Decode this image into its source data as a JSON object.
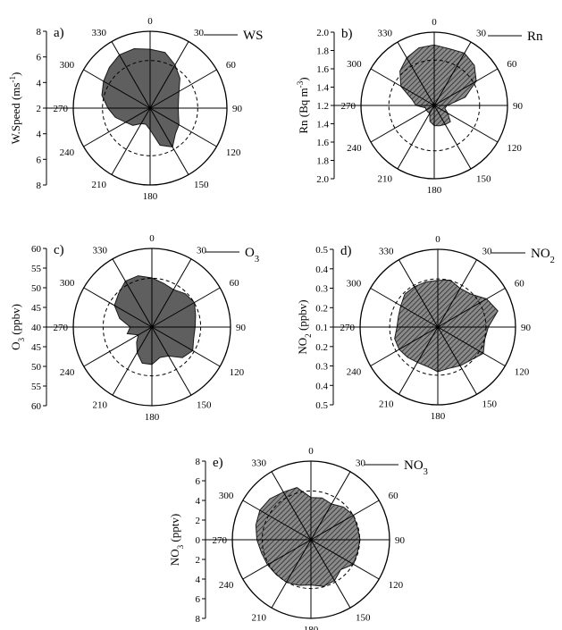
{
  "chart_data": [
    {
      "type": "polar-area",
      "panel": "a)",
      "ylabel": "W.Speed (ms⁻¹)",
      "legend": "WS",
      "rlim": [
        2,
        8
      ],
      "radial_ticks": [
        "2",
        "4",
        "6",
        "8"
      ],
      "angle_ticks": [
        "0",
        "30",
        "60",
        "90",
        "120",
        "150",
        "180",
        "210",
        "240",
        "270",
        "300",
        "330"
      ],
      "fill": "solid",
      "series": [
        {
          "name": "WS",
          "angles": [
            0,
            15,
            30,
            45,
            60,
            75,
            90,
            105,
            120,
            135,
            150,
            165,
            180,
            195,
            210,
            225,
            240,
            255,
            270,
            285,
            300,
            315,
            330,
            345
          ],
          "values": [
            6.6,
            6.5,
            5.9,
            5.3,
            4.6,
            4.3,
            4.2,
            4.3,
            4.6,
            4.8,
            5.5,
            5.0,
            3.7,
            3.3,
            3.4,
            3.9,
            4.2,
            4.8,
            5.3,
            5.9,
            6.2,
            6.5,
            6.8,
            6.8
          ]
        }
      ]
    },
    {
      "type": "polar-area",
      "panel": "b)",
      "ylabel": "Rn (Bq m⁻³)",
      "legend": "Rn",
      "rlim": [
        1.2,
        2.0
      ],
      "radial_ticks": [
        "1.2",
        "1.4",
        "1.6",
        "1.8",
        "2.0"
      ],
      "angle_ticks": [
        "0",
        "30",
        "60",
        "90",
        "120",
        "150",
        "180",
        "210",
        "240",
        "270",
        "300",
        "330"
      ],
      "fill": "hatched",
      "series": [
        {
          "name": "Rn",
          "angles": [
            0,
            15,
            30,
            45,
            60,
            75,
            90,
            105,
            120,
            135,
            150,
            165,
            180,
            195,
            210,
            225,
            240,
            255,
            270,
            285,
            300,
            315,
            330,
            345
          ],
          "values": [
            1.86,
            1.84,
            1.86,
            1.82,
            1.73,
            1.55,
            1.34,
            1.32,
            1.37,
            1.45,
            1.44,
            1.43,
            1.42,
            1.38,
            1.3,
            1.3,
            1.3,
            1.3,
            1.4,
            1.45,
            1.62,
            1.73,
            1.8,
            1.85
          ]
        }
      ]
    },
    {
      "type": "polar-area",
      "panel": "c)",
      "ylabel": "O₃ (ppbv)",
      "legend": "O₃",
      "rlim": [
        40,
        60
      ],
      "radial_ticks": [
        "40",
        "45",
        "50",
        "55",
        "60"
      ],
      "angle_ticks": [
        "0",
        "30",
        "60",
        "90",
        "120",
        "150",
        "180",
        "210",
        "240",
        "270",
        "300",
        "330"
      ],
      "fill": "solid",
      "series": [
        {
          "name": "O₃",
          "angles": [
            0,
            15,
            30,
            45,
            60,
            75,
            90,
            105,
            120,
            135,
            150,
            165,
            180,
            195,
            210,
            225,
            240,
            255,
            270,
            285,
            300,
            315,
            330,
            345
          ],
          "values": [
            52.5,
            51.5,
            51.0,
            52.0,
            52.5,
            51.5,
            51.0,
            51.0,
            52.0,
            51.0,
            48.5,
            48.0,
            49.5,
            49.5,
            47.5,
            45.5,
            44.0,
            46.5,
            45.5,
            48.5,
            51.0,
            52.0,
            53.5,
            53.5
          ]
        }
      ]
    },
    {
      "type": "polar-area",
      "panel": "d)",
      "ylabel": "NO₂ (ppbv)",
      "legend": "NO₂",
      "rlim": [
        0.1,
        0.5
      ],
      "radial_ticks": [
        "0.1",
        "0.2",
        "0.3",
        "0.4",
        "0.5"
      ],
      "angle_ticks": [
        "0",
        "30",
        "60",
        "90",
        "120",
        "150",
        "180",
        "210",
        "240",
        "270",
        "300",
        "330"
      ],
      "fill": "hatched",
      "series": [
        {
          "name": "NO₂",
          "angles": [
            0,
            15,
            30,
            45,
            60,
            75,
            90,
            105,
            120,
            135,
            150,
            165,
            180,
            195,
            210,
            225,
            240,
            255,
            270,
            285,
            300,
            315,
            330,
            345
          ],
          "values": [
            0.34,
            0.35,
            0.33,
            0.34,
            0.39,
            0.42,
            0.36,
            0.35,
            0.37,
            0.34,
            0.33,
            0.32,
            0.33,
            0.31,
            0.31,
            0.32,
            0.33,
            0.33,
            0.31,
            0.31,
            0.32,
            0.34,
            0.34,
            0.34
          ]
        }
      ]
    },
    {
      "type": "polar-area",
      "panel": "e)",
      "ylabel": "NO₃ (pptv)",
      "legend": "NO₃",
      "rlim": [
        0,
        8
      ],
      "radial_ticks": [
        "0",
        "2",
        "4",
        "6",
        "8"
      ],
      "angle_ticks": [
        "0",
        "30",
        "60",
        "90",
        "120",
        "150",
        "180",
        "210",
        "240",
        "270",
        "300",
        "330"
      ],
      "fill": "hatched",
      "series": [
        {
          "name": "NO₃",
          "angles": [
            0,
            15,
            30,
            45,
            60,
            75,
            90,
            105,
            120,
            135,
            150,
            165,
            180,
            195,
            210,
            225,
            240,
            255,
            270,
            285,
            300,
            315,
            330,
            345
          ],
          "values": [
            4.3,
            4.4,
            4.2,
            4.7,
            5.0,
            4.9,
            5.0,
            4.9,
            5.0,
            4.3,
            4.8,
            4.9,
            4.6,
            4.8,
            5.0,
            5.0,
            5.1,
            5.2,
            5.5,
            5.8,
            6.0,
            5.9,
            5.6,
            5.5
          ]
        }
      ]
    }
  ]
}
